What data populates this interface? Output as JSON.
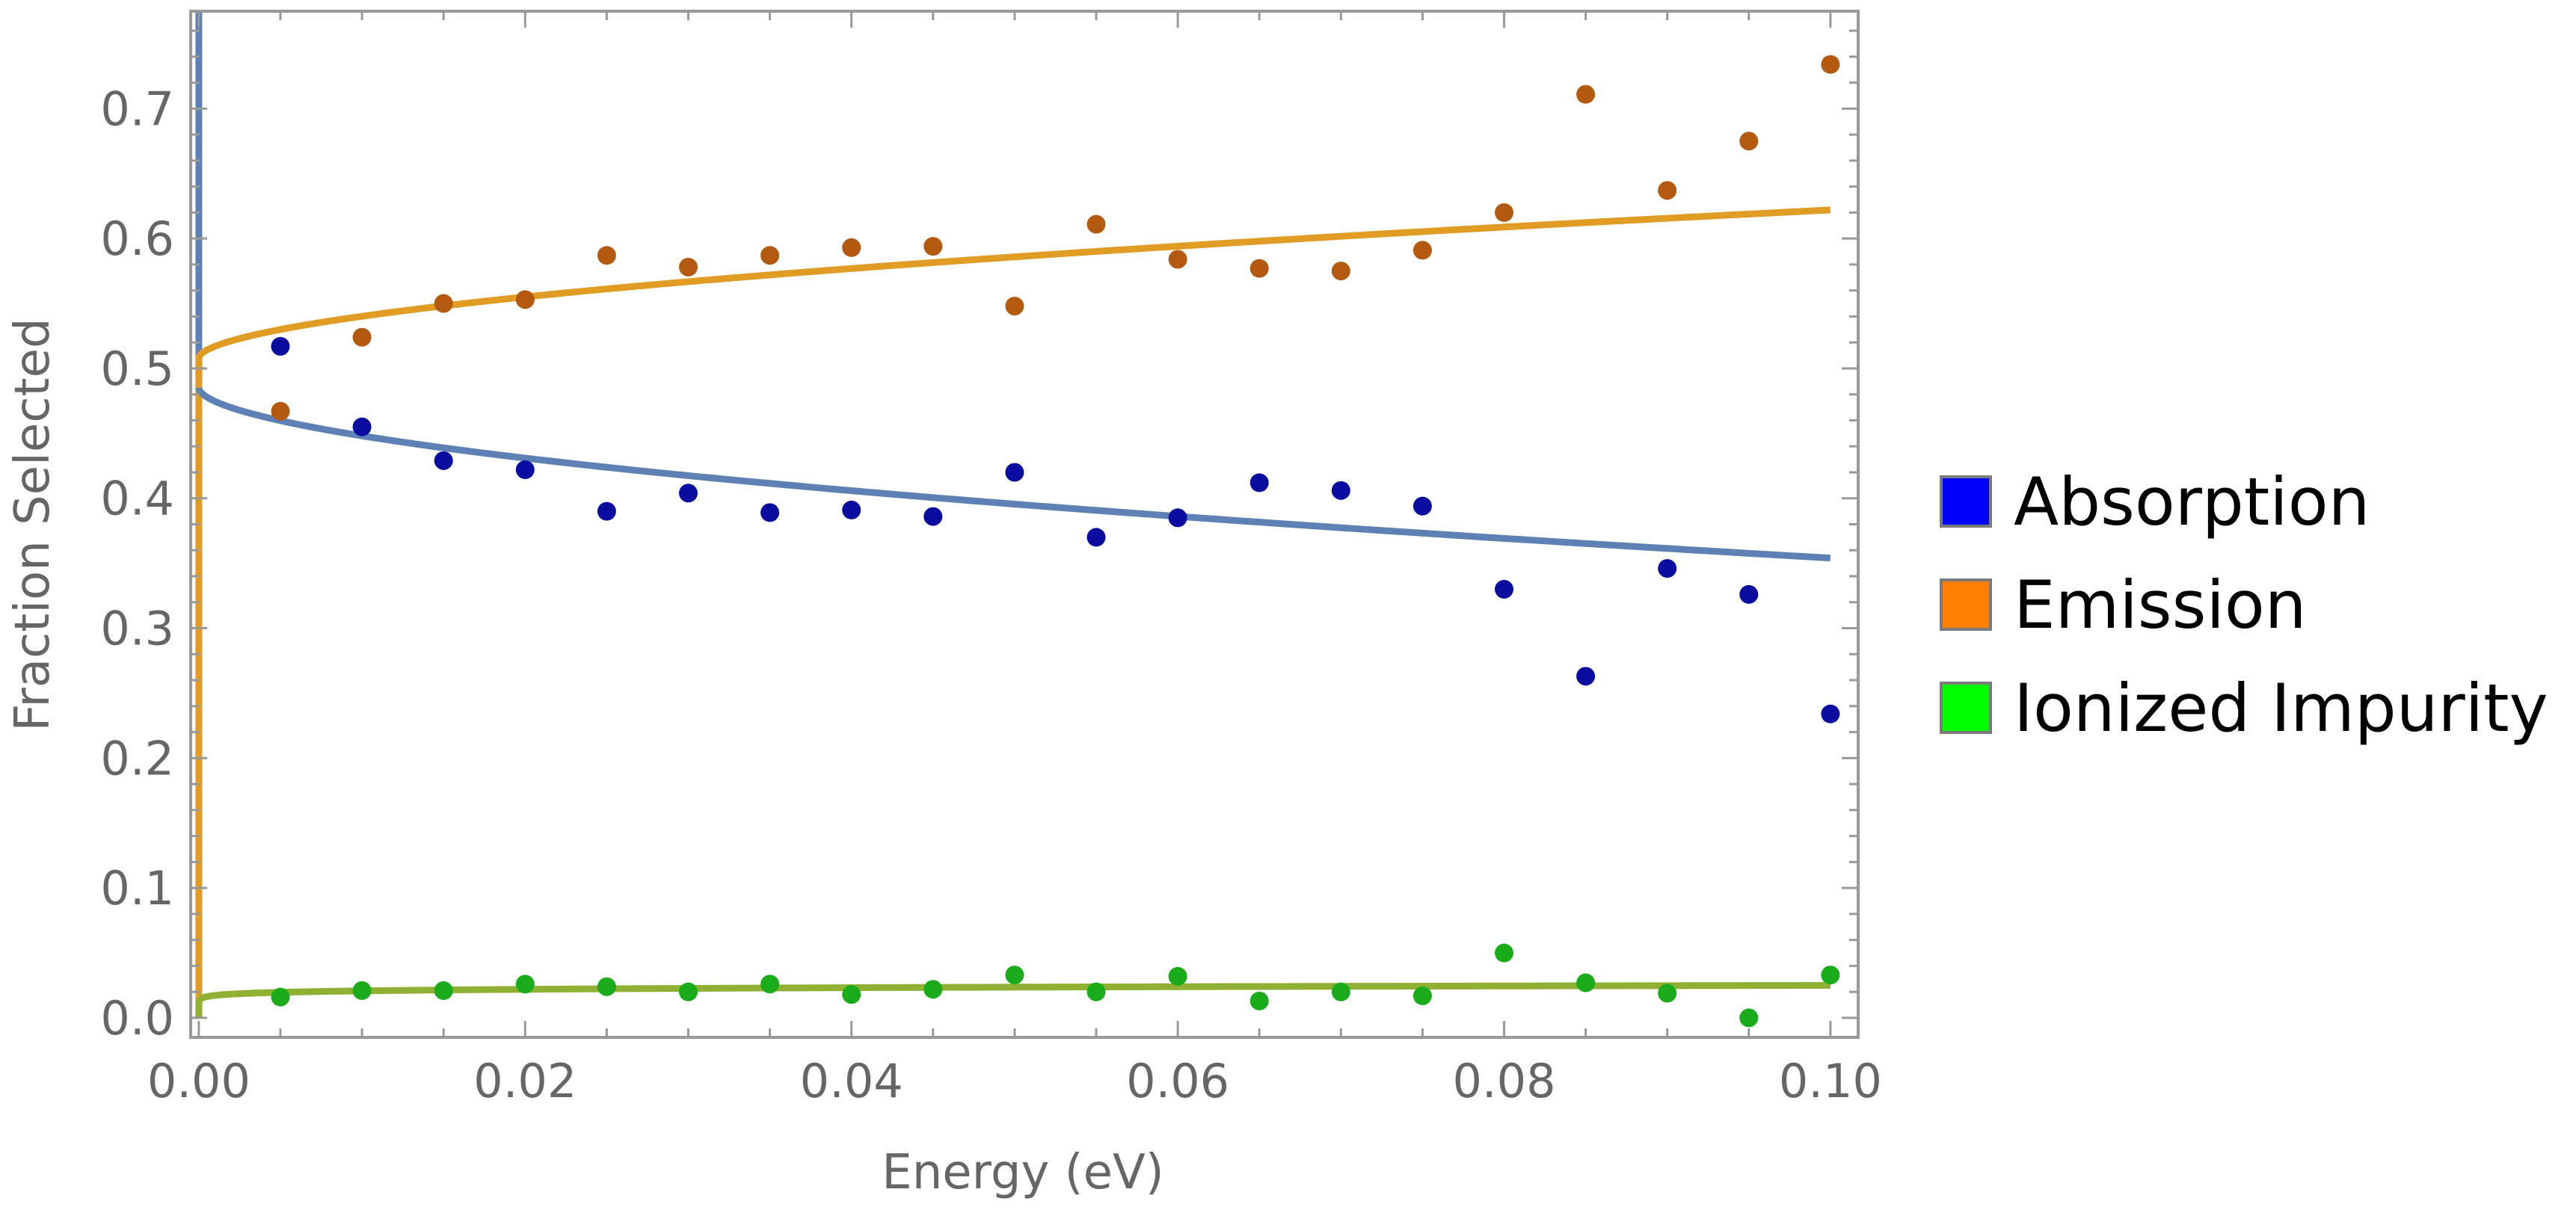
{
  "chart_data": {
    "type": "scatter",
    "title": "",
    "xlabel": "Energy (eV)",
    "ylabel": "Fraction Selected",
    "xlim": [
      -0.0005,
      0.1017
    ],
    "ylim": [
      -0.015,
      0.775
    ],
    "x_ticks": [
      "0.00",
      "0.02",
      "0.04",
      "0.06",
      "0.08",
      "0.10"
    ],
    "y_ticks": [
      "0.0",
      "0.1",
      "0.2",
      "0.3",
      "0.4",
      "0.5",
      "0.6",
      "0.7"
    ],
    "grid": false,
    "legend_position": "right",
    "x": [
      0.005,
      0.01,
      0.015,
      0.02,
      0.025,
      0.03,
      0.035,
      0.04,
      0.045,
      0.05,
      0.055,
      0.06,
      0.065,
      0.07,
      0.075,
      0.08,
      0.085,
      0.09,
      0.095,
      0.1
    ],
    "series": [
      {
        "name": "Absorption",
        "legend_color": "#0000ff",
        "point_color": "#0a0ca0",
        "line_color": "#5e81b5",
        "values": [
          0.517,
          0.455,
          0.429,
          0.422,
          0.39,
          0.404,
          0.389,
          0.391,
          0.386,
          0.42,
          0.37,
          0.385,
          0.412,
          0.406,
          0.394,
          0.33,
          0.263,
          0.346,
          0.326,
          0.234
        ]
      },
      {
        "name": "Emission",
        "legend_color": "#ff8000",
        "point_color": "#b35a10",
        "line_color": "#e19c24",
        "values": [
          0.467,
          0.524,
          0.55,
          0.553,
          0.587,
          0.578,
          0.587,
          0.593,
          0.594,
          0.548,
          0.611,
          0.584,
          0.577,
          0.575,
          0.591,
          0.62,
          0.711,
          0.637,
          0.675,
          0.734
        ]
      },
      {
        "name": "Ionized Impurity",
        "legend_color": "#00ff00",
        "point_color": "#1aac1a",
        "line_color": "#8fb032",
        "values": [
          0.016,
          0.021,
          0.021,
          0.026,
          0.024,
          0.02,
          0.026,
          0.018,
          0.022,
          0.033,
          0.02,
          0.032,
          0.013,
          0.02,
          0.017,
          0.05,
          0.027,
          0.019,
          0.0,
          0.033
        ]
      }
    ]
  }
}
